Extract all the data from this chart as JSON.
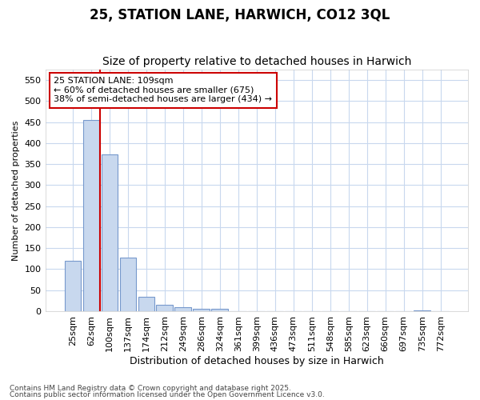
{
  "title": "25, STATION LANE, HARWICH, CO12 3QL",
  "subtitle": "Size of property relative to detached houses in Harwich",
  "xlabel": "Distribution of detached houses by size in Harwich",
  "ylabel": "Number of detached properties",
  "categories": [
    "25sqm",
    "62sqm",
    "100sqm",
    "137sqm",
    "174sqm",
    "212sqm",
    "249sqm",
    "286sqm",
    "324sqm",
    "361sqm",
    "399sqm",
    "436sqm",
    "473sqm",
    "511sqm",
    "548sqm",
    "585sqm",
    "623sqm",
    "660sqm",
    "697sqm",
    "735sqm",
    "772sqm"
  ],
  "values": [
    120,
    455,
    373,
    128,
    35,
    15,
    9,
    5,
    5,
    0,
    0,
    0,
    0,
    0,
    0,
    0,
    0,
    0,
    0,
    2,
    0
  ],
  "bar_color": "#c8d8ee",
  "bar_edge_color": "#7799cc",
  "bar_edge_width": 0.8,
  "vline_x": 1.5,
  "vline_color": "#cc0000",
  "annotation_text": "25 STATION LANE: 109sqm\n← 60% of detached houses are smaller (675)\n38% of semi-detached houses are larger (434) →",
  "annotation_box_color": "#ffffff",
  "annotation_box_edge": "#cc0000",
  "ylim": [
    0,
    575
  ],
  "yticks": [
    0,
    50,
    100,
    150,
    200,
    250,
    300,
    350,
    400,
    450,
    500,
    550
  ],
  "grid_color": "#c8d8ee",
  "bg_color": "#ffffff",
  "plot_bg_color": "#ffffff",
  "footer1": "Contains HM Land Registry data © Crown copyright and database right 2025.",
  "footer2": "Contains public sector information licensed under the Open Government Licence v3.0.",
  "title_fontsize": 12,
  "subtitle_fontsize": 10,
  "xlabel_fontsize": 9,
  "ylabel_fontsize": 8,
  "tick_fontsize": 8,
  "annotation_fontsize": 8
}
